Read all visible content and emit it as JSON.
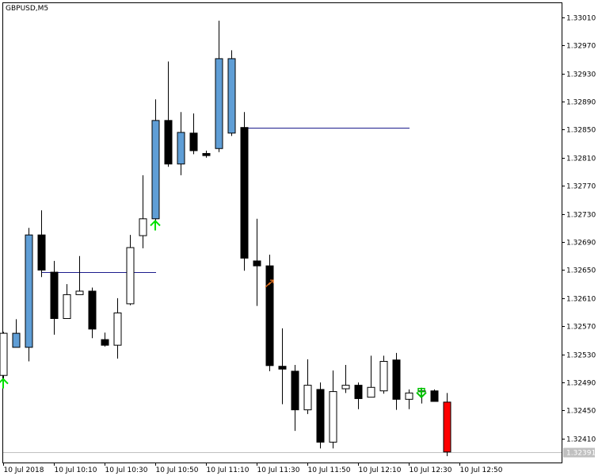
{
  "chart_data": {
    "type": "candlestick",
    "symbol_label": "GBPUSD,M5",
    "y_ticks": [
      "1.33010",
      "1.32970",
      "1.32930",
      "1.32890",
      "1.32850",
      "1.32810",
      "1.32770",
      "1.32730",
      "1.32690",
      "1.32650",
      "1.32610",
      "1.32570",
      "1.32530",
      "1.32490",
      "1.32450",
      "1.32410"
    ],
    "ylim": [
      1.32376,
      1.3303
    ],
    "x_labels": [
      "10 Jul 2018",
      "10 Jul 10:10",
      "10 Jul 10:30",
      "10 Jul 10:50",
      "10 Jul 11:10",
      "10 Jul 11:30",
      "10 Jul 11:50",
      "10 Jul 12:10",
      "10 Jul 12:30",
      "10 Jul 12:50"
    ],
    "x_label_bar_index": [
      0,
      4,
      8,
      12,
      16,
      20,
      24,
      28,
      32,
      36
    ],
    "current_price": "1.32391",
    "colors": {
      "bull_body": "#ffffff",
      "bear_body": "#000000",
      "accent_body": "#5f9ed6",
      "last_bar_body": "#ff0000",
      "wick": "#000000",
      "level_line": "#1c1c8c",
      "arrow_up": "#00e000",
      "arrow_down": "#00c000",
      "signal_orange": "#e07020"
    },
    "candles": [
      {
        "o": 1.325,
        "h": 1.32562,
        "l": 1.3249,
        "c": 1.3256,
        "style": "bull"
      },
      {
        "o": 1.3256,
        "h": 1.3258,
        "l": 1.3254,
        "c": 1.3254,
        "style": "accent"
      },
      {
        "o": 1.3254,
        "h": 1.3271,
        "l": 1.3252,
        "c": 1.327,
        "style": "accent"
      },
      {
        "o": 1.327,
        "h": 1.32735,
        "l": 1.3264,
        "c": 1.3265,
        "style": "bear"
      },
      {
        "o": 1.32647,
        "h": 1.32663,
        "l": 1.32558,
        "c": 1.32581,
        "style": "bear"
      },
      {
        "o": 1.32581,
        "h": 1.3263,
        "l": 1.32581,
        "c": 1.32615,
        "style": "bull"
      },
      {
        "o": 1.32615,
        "h": 1.3267,
        "l": 1.32615,
        "c": 1.3262,
        "style": "bull"
      },
      {
        "o": 1.3262,
        "h": 1.32625,
        "l": 1.32553,
        "c": 1.32566,
        "style": "bear"
      },
      {
        "o": 1.32551,
        "h": 1.32561,
        "l": 1.32541,
        "c": 1.32543,
        "style": "bear"
      },
      {
        "o": 1.32543,
        "h": 1.3261,
        "l": 1.32524,
        "c": 1.32589,
        "style": "bull"
      },
      {
        "o": 1.32602,
        "h": 1.327,
        "l": 1.326,
        "c": 1.32682,
        "style": "bull"
      },
      {
        "o": 1.32699,
        "h": 1.32785,
        "l": 1.32681,
        "c": 1.32723,
        "style": "bull"
      },
      {
        "o": 1.32723,
        "h": 1.32893,
        "l": 1.32712,
        "c": 1.32863,
        "style": "accent"
      },
      {
        "o": 1.32863,
        "h": 1.32947,
        "l": 1.32797,
        "c": 1.32801,
        "style": "bear"
      },
      {
        "o": 1.32801,
        "h": 1.32875,
        "l": 1.32785,
        "c": 1.32846,
        "style": "accent"
      },
      {
        "o": 1.32845,
        "h": 1.32873,
        "l": 1.32815,
        "c": 1.3282,
        "style": "bear"
      },
      {
        "o": 1.32816,
        "h": 1.3282,
        "l": 1.3281,
        "c": 1.32813,
        "style": "bear"
      },
      {
        "o": 1.32823,
        "h": 1.33005,
        "l": 1.32818,
        "c": 1.32951,
        "style": "accent"
      },
      {
        "o": 1.32951,
        "h": 1.32963,
        "l": 1.32841,
        "c": 1.32845,
        "style": "accent"
      },
      {
        "o": 1.32853,
        "h": 1.32875,
        "l": 1.32649,
        "c": 1.32667,
        "style": "bear"
      },
      {
        "o": 1.32663,
        "h": 1.32723,
        "l": 1.32599,
        "c": 1.32656,
        "style": "bear"
      },
      {
        "o": 1.32656,
        "h": 1.32672,
        "l": 1.32506,
        "c": 1.32514,
        "style": "bear"
      },
      {
        "o": 1.32513,
        "h": 1.32567,
        "l": 1.32459,
        "c": 1.32509,
        "style": "bear"
      },
      {
        "o": 1.32506,
        "h": 1.32515,
        "l": 1.32421,
        "c": 1.32451,
        "style": "bear"
      },
      {
        "o": 1.32451,
        "h": 1.32523,
        "l": 1.32445,
        "c": 1.32486,
        "style": "bull"
      },
      {
        "o": 1.3248,
        "h": 1.3249,
        "l": 1.32396,
        "c": 1.32405,
        "style": "bear"
      },
      {
        "o": 1.32405,
        "h": 1.32507,
        "l": 1.32396,
        "c": 1.32477,
        "style": "bull"
      },
      {
        "o": 1.32481,
        "h": 1.32515,
        "l": 1.32475,
        "c": 1.32486,
        "style": "bull"
      },
      {
        "o": 1.32486,
        "h": 1.3249,
        "l": 1.32452,
        "c": 1.32467,
        "style": "bear"
      },
      {
        "o": 1.32469,
        "h": 1.32528,
        "l": 1.32469,
        "c": 1.32483,
        "style": "bull"
      },
      {
        "o": 1.32478,
        "h": 1.32528,
        "l": 1.32474,
        "c": 1.3252,
        "style": "bull"
      },
      {
        "o": 1.32522,
        "h": 1.32532,
        "l": 1.32451,
        "c": 1.32466,
        "style": "bear"
      },
      {
        "o": 1.32466,
        "h": 1.3248,
        "l": 1.32452,
        "c": 1.32475,
        "style": "bull"
      },
      {
        "o": 1.32477,
        "h": 1.3248,
        "l": 1.3246,
        "c": 1.32478,
        "style": "bull"
      },
      {
        "o": 1.32478,
        "h": 1.3248,
        "l": 1.32463,
        "c": 1.32463,
        "style": "bear"
      },
      {
        "o": 1.32462,
        "h": 1.32475,
        "l": 1.32385,
        "c": 1.32391,
        "style": "last"
      }
    ],
    "level_lines": [
      {
        "price": 1.32647,
        "from_bar": 3,
        "to_bar": 12
      },
      {
        "price": 1.32853,
        "from_bar": 19,
        "to_bar": 32
      }
    ],
    "arrows": [
      {
        "bar": 0,
        "price": 1.32495,
        "dir": "up",
        "color_key": "arrow_up"
      },
      {
        "bar": 12,
        "price": 1.3272,
        "dir": "up",
        "color_key": "arrow_up"
      },
      {
        "bar": 33,
        "price": 1.32478,
        "dir": "down",
        "color_key": "arrow_down"
      }
    ],
    "signal_marks": [
      {
        "bar": 21,
        "price": 1.3263,
        "color_key": "signal_orange"
      }
    ],
    "grid": false,
    "legend": "none"
  }
}
